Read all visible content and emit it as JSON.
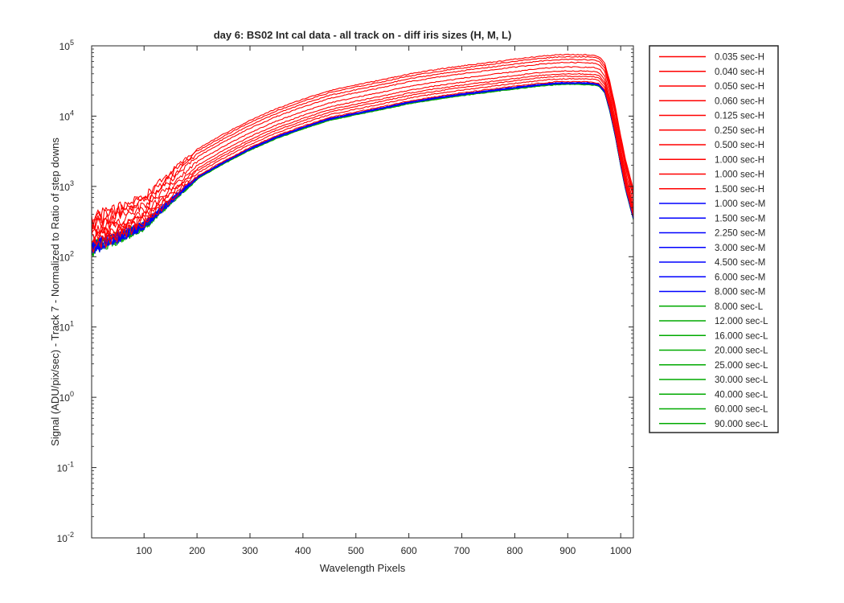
{
  "chart_data": {
    "type": "line",
    "title": "day 6: BS02   Int cal data - all track on - diff iris sizes (H, M, L)",
    "xlabel": "Wavelength Pixels",
    "ylabel": "Signal (ADU/pix/sec) - Track 7 - Normalized to Ratio of step downs",
    "yscale": "log",
    "xlim": [
      1,
      1024
    ],
    "ylim": [
      0.01,
      100000
    ],
    "xticks": [
      100,
      200,
      300,
      400,
      500,
      600,
      700,
      800,
      900,
      1000
    ],
    "xtick_labels": [
      "100",
      "200",
      "300",
      "400",
      "500",
      "600",
      "700",
      "800",
      "900",
      "1000"
    ],
    "yticks": [
      {
        "value": 0.01,
        "base": "10",
        "exp": "-2"
      },
      {
        "value": 0.1,
        "base": "10",
        "exp": "-1"
      },
      {
        "value": 1,
        "base": "10",
        "exp": "0"
      },
      {
        "value": 10,
        "base": "10",
        "exp": "1"
      },
      {
        "value": 100,
        "base": "10",
        "exp": "2"
      },
      {
        "value": 1000,
        "base": "10",
        "exp": "3"
      },
      {
        "value": 10000,
        "base": "10",
        "exp": "4"
      },
      {
        "value": 100000,
        "base": "10",
        "exp": "5"
      }
    ],
    "grid": false,
    "legend_position": "outside-right",
    "colors": {
      "H": "#ff0000",
      "M": "#0000ff",
      "L": "#00aa00"
    },
    "profile_x": [
      1,
      10,
      50,
      100,
      150,
      200,
      250,
      300,
      350,
      400,
      450,
      500,
      550,
      600,
      650,
      700,
      750,
      800,
      850,
      880,
      900,
      930,
      950,
      960,
      970,
      980,
      990,
      1000,
      1010,
      1024
    ],
    "profile_shape": [
      0.0045,
      0.005,
      0.0065,
      0.0095,
      0.021,
      0.045,
      0.074,
      0.116,
      0.17,
      0.232,
      0.308,
      0.37,
      0.44,
      0.53,
      0.61,
      0.69,
      0.77,
      0.86,
      0.95,
      0.99,
      1.0,
      0.995,
      0.98,
      0.93,
      0.75,
      0.4,
      0.18,
      0.07,
      0.03,
      0.012
    ],
    "series": [
      {
        "name": "0.035 sec-H",
        "group": "H",
        "peak": 75000
      },
      {
        "name": "0.040 sec-H",
        "group": "H",
        "peak": 70000
      },
      {
        "name": "0.050 sec-H",
        "group": "H",
        "peak": 64000
      },
      {
        "name": "0.060 sec-H",
        "group": "H",
        "peak": 58000
      },
      {
        "name": "0.125 sec-H",
        "group": "H",
        "peak": 50000
      },
      {
        "name": "0.250 sec-H",
        "group": "H",
        "peak": 44000
      },
      {
        "name": "0.500 sec-H",
        "group": "H",
        "peak": 40000
      },
      {
        "name": "1.000 sec-H",
        "group": "H",
        "peak": 37000
      },
      {
        "name": "1.000 sec-H",
        "group": "H",
        "peak": 34000
      },
      {
        "name": "1.500 sec-H",
        "group": "H",
        "peak": 31000
      },
      {
        "name": "1.000 sec-M",
        "group": "M",
        "peak": 30000
      },
      {
        "name": "1.500 sec-M",
        "group": "M",
        "peak": 29800
      },
      {
        "name": "2.250 sec-M",
        "group": "M",
        "peak": 29600
      },
      {
        "name": "3.000 sec-M",
        "group": "M",
        "peak": 29500
      },
      {
        "name": "4.500 sec-M",
        "group": "M",
        "peak": 29400
      },
      {
        "name": "6.000 sec-M",
        "group": "M",
        "peak": 29300
      },
      {
        "name": "8.000 sec-M",
        "group": "M",
        "peak": 29200
      },
      {
        "name": "8.000 sec-L",
        "group": "L",
        "peak": 29100
      },
      {
        "name": "12.000 sec-L",
        "group": "L",
        "peak": 29000
      },
      {
        "name": "16.000 sec-L",
        "group": "L",
        "peak": 28900
      },
      {
        "name": "20.000 sec-L",
        "group": "L",
        "peak": 28800
      },
      {
        "name": "25.000 sec-L",
        "group": "L",
        "peak": 28700
      },
      {
        "name": "30.000 sec-L",
        "group": "L",
        "peak": 28600
      },
      {
        "name": "40.000 sec-L",
        "group": "L",
        "peak": 28500
      },
      {
        "name": "60.000 sec-L",
        "group": "L",
        "peak": 28400
      },
      {
        "name": "90.000 sec-L",
        "group": "L",
        "peak": 28300
      }
    ]
  }
}
